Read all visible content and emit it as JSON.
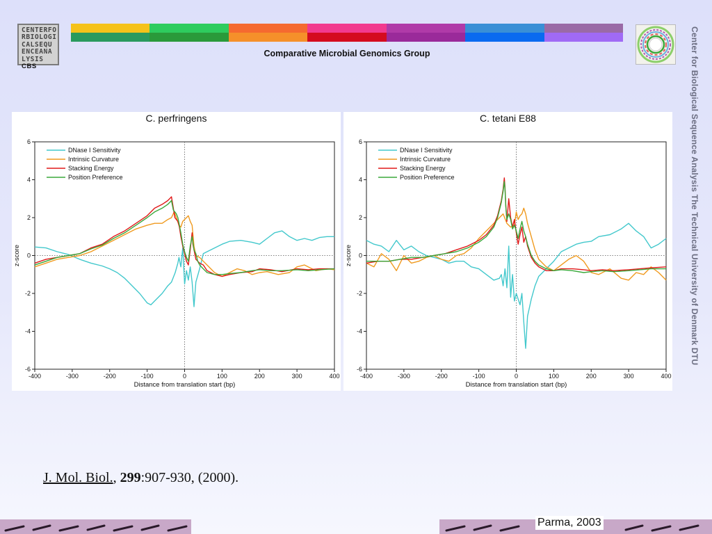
{
  "header": {
    "logo_left_lines": [
      "CENTERFO",
      "RBIOLOGI",
      "CALSEQU",
      "ENCEANA",
      "LYSIS"
    ],
    "logo_left_cbs": "CBS",
    "group_title": "Comparative Microbial Genomics Group",
    "color_bar_top": [
      "#f5c21a",
      "#2ecc5e",
      "#f56a30",
      "#f23a8e",
      "#b03aa8",
      "#3a8fd6",
      "#9a6aa6"
    ],
    "color_bar_bottom": [
      "#2a9a5e",
      "#2a9a3a",
      "#f5902a",
      "#d40b1e",
      "#9a2a9a",
      "#0a6af0",
      "#a06af5"
    ]
  },
  "sidebar_text": "Center for Biological Sequence Analysis    The Technical University of Denmark    DTU",
  "citation": {
    "journal": "J. Mol. Biol.",
    "comma": ", ",
    "volume": "299",
    "pages": ":907-930, (2000)."
  },
  "footer": {
    "label": "Parma, 2003"
  },
  "series_colors": {
    "DNase I Sensitivity": "#42c8cc",
    "Intrinsic Curvature": "#f09a1e",
    "Stacking Energy": "#e01818",
    "Position Preference": "#3aa83a"
  },
  "chart_data": [
    {
      "type": "line",
      "title": "C. perfringens",
      "xlabel": "Distance from translation start (bp)",
      "ylabel": "z-score",
      "xlim": [
        -400,
        400
      ],
      "ylim": [
        -6,
        6
      ],
      "xticks": [
        -400,
        -300,
        -200,
        -100,
        0,
        100,
        200,
        300,
        400
      ],
      "yticks": [
        -6,
        -4,
        -2,
        0,
        2,
        4,
        6
      ],
      "grid": false,
      "legend": "top-left",
      "reference_lines": {
        "vertical_x": 0,
        "horizontal_y": 0,
        "style": "dotted"
      },
      "series": [
        {
          "name": "DNase I Sensitivity",
          "x": [
            -400,
            -370,
            -340,
            -310,
            -280,
            -250,
            -220,
            -200,
            -180,
            -160,
            -140,
            -120,
            -100,
            -90,
            -80,
            -60,
            -45,
            -35,
            -25,
            -18,
            -15,
            -10,
            -5,
            0,
            5,
            10,
            15,
            20,
            25,
            30,
            40,
            50,
            60,
            80,
            100,
            120,
            150,
            180,
            200,
            220,
            240,
            260,
            280,
            300,
            320,
            340,
            360,
            380,
            400
          ],
          "y": [
            0.45,
            0.4,
            0.2,
            0.05,
            -0.2,
            -0.4,
            -0.55,
            -0.7,
            -0.9,
            -1.2,
            -1.6,
            -2.0,
            -2.5,
            -2.6,
            -2.4,
            -2.0,
            -1.6,
            -1.4,
            -0.9,
            -0.4,
            -0.1,
            -0.6,
            0.4,
            -1.5,
            -0.8,
            -1.3,
            -0.6,
            -1.4,
            -2.7,
            -1.4,
            -0.7,
            0.1,
            0.2,
            0.4,
            0.6,
            0.75,
            0.8,
            0.7,
            0.6,
            0.9,
            1.2,
            1.3,
            1.0,
            0.8,
            0.9,
            0.8,
            0.95,
            1.0,
            1.0
          ]
        },
        {
          "name": "Intrinsic Curvature",
          "x": [
            -400,
            -370,
            -340,
            -310,
            -280,
            -250,
            -220,
            -190,
            -160,
            -130,
            -100,
            -80,
            -60,
            -45,
            -35,
            -28,
            -22,
            -15,
            -10,
            -5,
            0,
            5,
            10,
            15,
            20,
            25,
            30,
            40,
            50,
            60,
            80,
            100,
            120,
            140,
            160,
            180,
            200,
            220,
            250,
            280,
            300,
            320,
            350,
            380,
            400
          ],
          "y": [
            -0.6,
            -0.4,
            -0.2,
            -0.1,
            0.0,
            0.2,
            0.5,
            0.8,
            1.1,
            1.4,
            1.6,
            1.7,
            1.7,
            1.9,
            2.0,
            2.3,
            2.0,
            1.6,
            1.5,
            1.8,
            1.9,
            2.0,
            2.1,
            1.8,
            1.6,
            0.5,
            0.0,
            -0.1,
            -0.3,
            -0.5,
            -0.9,
            -1.1,
            -0.9,
            -0.7,
            -0.8,
            -1.0,
            -0.9,
            -0.85,
            -1.0,
            -0.9,
            -0.6,
            -0.5,
            -0.8,
            -0.7,
            -0.75
          ]
        },
        {
          "name": "Stacking Energy",
          "x": [
            -400,
            -370,
            -340,
            -310,
            -280,
            -250,
            -220,
            -190,
            -160,
            -130,
            -100,
            -80,
            -60,
            -45,
            -40,
            -35,
            -30,
            -26,
            -22,
            -18,
            -14,
            -10,
            -5,
            0,
            5,
            10,
            15,
            20,
            22,
            25,
            30,
            35,
            40,
            50,
            60,
            80,
            100,
            120,
            150,
            180,
            200,
            230,
            260,
            300,
            330,
            360,
            400
          ],
          "y": [
            -0.4,
            -0.2,
            -0.1,
            0.0,
            0.1,
            0.4,
            0.6,
            1.0,
            1.3,
            1.7,
            2.1,
            2.5,
            2.7,
            2.9,
            3.0,
            3.1,
            2.5,
            2.0,
            1.9,
            1.8,
            1.5,
            1.0,
            0.5,
            0.1,
            -0.3,
            -0.5,
            0.3,
            1.2,
            0.6,
            0.3,
            -0.2,
            -0.3,
            -0.4,
            -0.5,
            -0.8,
            -1.0,
            -1.1,
            -1.0,
            -0.9,
            -0.85,
            -0.7,
            -0.75,
            -0.85,
            -0.7,
            -0.75,
            -0.7,
            -0.7
          ]
        },
        {
          "name": "Position Preference",
          "x": [
            -400,
            -370,
            -340,
            -310,
            -280,
            -250,
            -220,
            -190,
            -160,
            -130,
            -100,
            -80,
            -60,
            -45,
            -40,
            -35,
            -30,
            -26,
            -22,
            -18,
            -14,
            -10,
            -5,
            0,
            5,
            10,
            15,
            20,
            25,
            30,
            35,
            40,
            50,
            60,
            80,
            100,
            120,
            150,
            180,
            200,
            230,
            260,
            300,
            330,
            360,
            400
          ],
          "y": [
            -0.5,
            -0.3,
            -0.1,
            0.0,
            0.1,
            0.35,
            0.55,
            0.9,
            1.2,
            1.6,
            2.0,
            2.3,
            2.5,
            2.7,
            2.8,
            2.9,
            2.4,
            2.3,
            2.2,
            2.0,
            1.6,
            1.2,
            0.6,
            0.2,
            -0.1,
            -0.3,
            0.5,
            1.0,
            0.3,
            0.1,
            -0.3,
            -0.5,
            -0.7,
            -0.9,
            -1.0,
            -1.0,
            -0.95,
            -0.9,
            -0.8,
            -0.75,
            -0.8,
            -0.8,
            -0.75,
            -0.8,
            -0.75,
            -0.7
          ]
        }
      ]
    },
    {
      "type": "line",
      "title": "C. tetani E88",
      "xlabel": "Distance from translation start (bp)",
      "ylabel": "z-score",
      "xlim": [
        -400,
        400
      ],
      "ylim": [
        -6,
        6
      ],
      "xticks": [
        -400,
        -300,
        -200,
        -100,
        0,
        100,
        200,
        300,
        400
      ],
      "yticks": [
        -6,
        -4,
        -2,
        0,
        2,
        4,
        6
      ],
      "grid": false,
      "legend": "top-left",
      "reference_lines": {
        "vertical_x": 0,
        "horizontal_y": 0,
        "style": "dotted"
      },
      "series": [
        {
          "name": "DNase I Sensitivity",
          "x": [
            -400,
            -380,
            -360,
            -340,
            -320,
            -300,
            -280,
            -260,
            -240,
            -220,
            -200,
            -180,
            -160,
            -140,
            -120,
            -100,
            -80,
            -60,
            -45,
            -40,
            -35,
            -30,
            -25,
            -20,
            -15,
            -10,
            -5,
            0,
            5,
            10,
            15,
            20,
            25,
            30,
            40,
            50,
            60,
            80,
            100,
            120,
            140,
            160,
            180,
            200,
            220,
            250,
            280,
            300,
            320,
            340,
            360,
            380,
            400
          ],
          "y": [
            0.8,
            0.6,
            0.5,
            0.2,
            0.8,
            0.3,
            0.5,
            0.2,
            0.0,
            -0.1,
            -0.2,
            -0.4,
            -0.3,
            -0.3,
            -0.6,
            -0.7,
            -1.0,
            -1.3,
            -1.2,
            -1.0,
            -1.6,
            -0.7,
            -1.7,
            0.5,
            -2.2,
            -1.0,
            -2.4,
            -2.0,
            -2.3,
            -2.6,
            -2.0,
            -3.5,
            -4.9,
            -3.2,
            -2.3,
            -1.6,
            -1.1,
            -0.7,
            -0.3,
            0.2,
            0.4,
            0.6,
            0.7,
            0.75,
            1.0,
            1.1,
            1.4,
            1.7,
            1.3,
            1.0,
            0.4,
            0.6,
            0.9
          ]
        },
        {
          "name": "Intrinsic Curvature",
          "x": [
            -400,
            -380,
            -360,
            -340,
            -320,
            -300,
            -280,
            -260,
            -240,
            -220,
            -200,
            -180,
            -160,
            -140,
            -120,
            -100,
            -80,
            -60,
            -45,
            -35,
            -25,
            -15,
            -5,
            0,
            5,
            10,
            15,
            20,
            25,
            30,
            40,
            50,
            60,
            80,
            100,
            120,
            140,
            160,
            180,
            200,
            220,
            250,
            280,
            300,
            320,
            340,
            360,
            380,
            400
          ],
          "y": [
            -0.4,
            -0.6,
            0.1,
            -0.2,
            -0.8,
            0.0,
            -0.4,
            -0.3,
            -0.1,
            0.0,
            -0.2,
            -0.3,
            0.0,
            0.1,
            0.4,
            0.9,
            1.3,
            1.7,
            2.0,
            2.2,
            1.7,
            1.5,
            1.6,
            2.3,
            1.9,
            2.1,
            2.2,
            2.5,
            2.2,
            1.7,
            1.0,
            0.3,
            -0.2,
            -0.6,
            -0.8,
            -0.5,
            -0.2,
            0.0,
            -0.3,
            -0.9,
            -1.0,
            -0.7,
            -1.2,
            -1.3,
            -0.9,
            -1.0,
            -0.6,
            -0.9,
            -1.3
          ]
        },
        {
          "name": "Stacking Energy",
          "x": [
            -400,
            -370,
            -340,
            -310,
            -280,
            -250,
            -220,
            -190,
            -160,
            -130,
            -100,
            -80,
            -60,
            -50,
            -40,
            -35,
            -32,
            -30,
            -28,
            -25,
            -20,
            -15,
            -10,
            -5,
            0,
            5,
            10,
            15,
            20,
            25,
            30,
            40,
            50,
            60,
            80,
            100,
            120,
            150,
            180,
            200,
            230,
            260,
            300,
            330,
            360,
            400
          ],
          "y": [
            -0.4,
            -0.3,
            -0.3,
            -0.2,
            -0.2,
            -0.1,
            0.0,
            0.1,
            0.3,
            0.5,
            0.8,
            1.1,
            1.6,
            2.1,
            2.9,
            3.5,
            4.1,
            3.6,
            2.7,
            1.8,
            3.0,
            2.0,
            1.5,
            1.9,
            1.2,
            0.6,
            1.1,
            1.5,
            0.7,
            1.0,
            0.5,
            -0.1,
            -0.4,
            -0.6,
            -0.8,
            -0.8,
            -0.7,
            -0.7,
            -0.75,
            -0.8,
            -0.75,
            -0.8,
            -0.75,
            -0.7,
            -0.65,
            -0.6
          ]
        },
        {
          "name": "Position Preference",
          "x": [
            -400,
            -370,
            -340,
            -310,
            -280,
            -250,
            -220,
            -190,
            -160,
            -130,
            -100,
            -80,
            -60,
            -50,
            -40,
            -35,
            -32,
            -30,
            -28,
            -25,
            -20,
            -15,
            -10,
            -5,
            0,
            5,
            10,
            15,
            20,
            25,
            30,
            40,
            50,
            60,
            80,
            100,
            120,
            150,
            180,
            200,
            230,
            260,
            300,
            330,
            360,
            400
          ],
          "y": [
            -0.3,
            -0.3,
            -0.3,
            -0.2,
            -0.1,
            -0.1,
            0.0,
            0.1,
            0.2,
            0.4,
            0.7,
            1.0,
            1.5,
            2.0,
            2.8,
            3.4,
            3.9,
            3.5,
            2.6,
            1.9,
            2.2,
            1.9,
            1.4,
            1.6,
            1.3,
            0.9,
            1.4,
            1.8,
            1.3,
            1.0,
            0.6,
            0.0,
            -0.3,
            -0.5,
            -0.7,
            -0.8,
            -0.75,
            -0.8,
            -0.9,
            -0.85,
            -0.8,
            -0.85,
            -0.8,
            -0.75,
            -0.7,
            -0.7
          ]
        }
      ]
    }
  ]
}
